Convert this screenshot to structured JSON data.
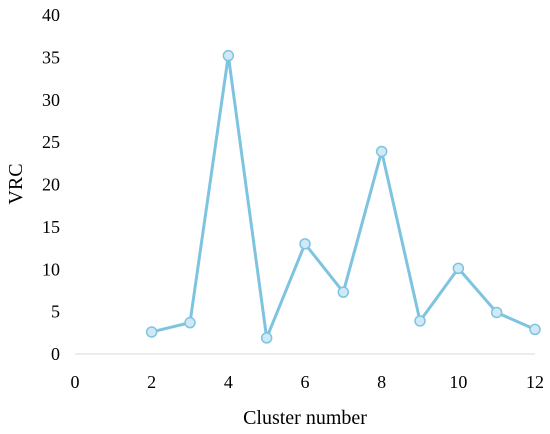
{
  "chart_data": {
    "type": "line",
    "title": "",
    "xlabel": "Cluster number",
    "ylabel": "VRC",
    "xlim": [
      0,
      12
    ],
    "ylim": [
      0,
      40
    ],
    "xticks": [
      0,
      2,
      4,
      6,
      8,
      10,
      12
    ],
    "yticks": [
      0,
      5,
      10,
      15,
      20,
      25,
      30,
      35,
      40
    ],
    "grid": false,
    "legend": "none",
    "series": [
      {
        "x": [
          2,
          3,
          4,
          5,
          6,
          7,
          8,
          9,
          10,
          11,
          12
        ],
        "y": [
          2.6,
          3.7,
          35.2,
          1.9,
          13.0,
          7.3,
          23.9,
          3.9,
          10.1,
          4.9,
          2.9
        ],
        "color": "#7ec4e0",
        "marker_fill": "#cfe9f6"
      }
    ]
  }
}
